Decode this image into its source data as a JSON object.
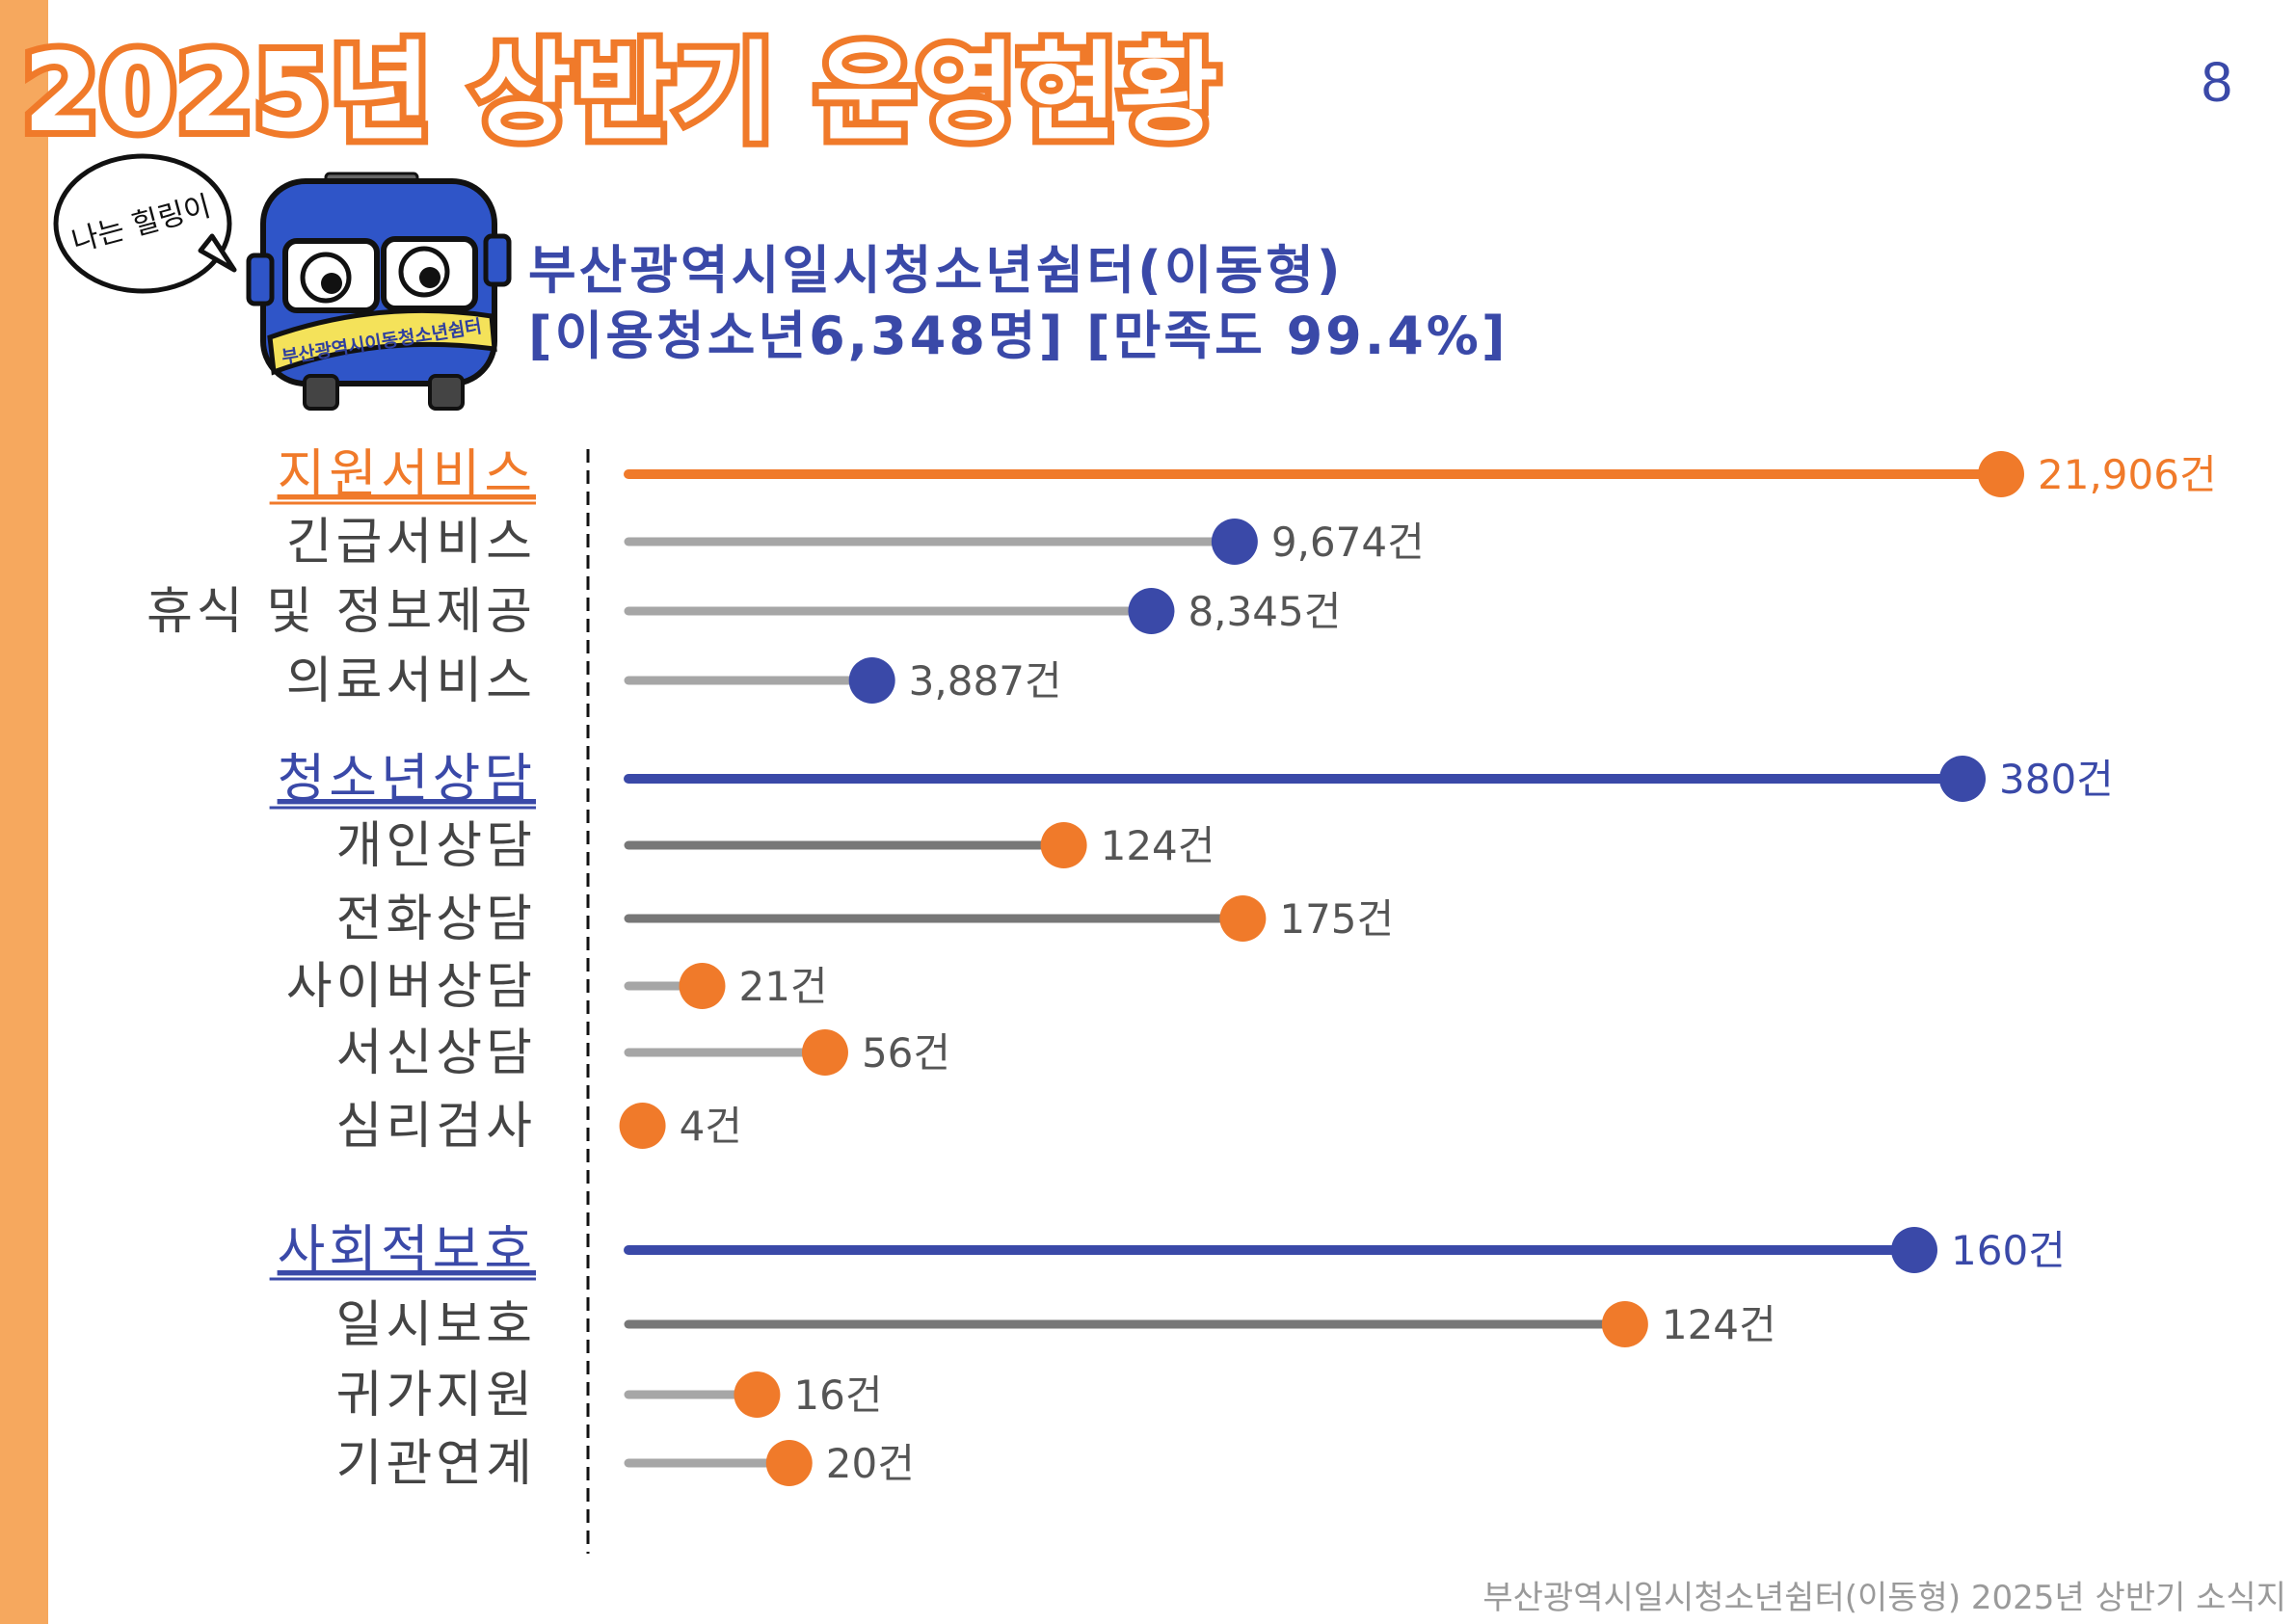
{
  "page": {
    "title": "2025년 상반기 운영현황",
    "page_number": "8",
    "heading_line1": "부산광역시일시청소년쉼터(이동형)",
    "heading_line2": "[이용청소년6,348명] [만족도 99.4%]",
    "mascot_speech": "나는 힐링이",
    "mascot_sign": "부산광역시이동청소년쉼터",
    "footer": "부산광역시일시청소년쉼터(이동형) 2025년 상반기 소식지"
  },
  "colors": {
    "accent_orange": "#f07a2a",
    "accent_blue": "#3a49a8",
    "light_gray": "#a6a6a6",
    "dark_gray": "#777777",
    "side_bar": "#f6a85e"
  },
  "chart_data": {
    "type": "lollipop",
    "unit": "건",
    "groups": [
      {
        "name": "지원서비스",
        "value": 21906,
        "value_label": "21,906건",
        "color": "orange",
        "items": [
          {
            "name": "긴급서비스",
            "value": 9674,
            "value_label": "9,674건"
          },
          {
            "name": "휴식 및 정보제공",
            "value": 8345,
            "value_label": "8,345건"
          },
          {
            "name": "의료서비스",
            "value": 3887,
            "value_label": "3,887건"
          }
        ]
      },
      {
        "name": "청소년상담",
        "value": 380,
        "value_label": "380건",
        "color": "blue",
        "items": [
          {
            "name": "개인상담",
            "value": 124,
            "value_label": "124건"
          },
          {
            "name": "전화상담",
            "value": 175,
            "value_label": "175건"
          },
          {
            "name": "사이버상담",
            "value": 21,
            "value_label": "21건"
          },
          {
            "name": "서신상담",
            "value": 56,
            "value_label": "56건"
          },
          {
            "name": "심리검사",
            "value": 4,
            "value_label": "4건"
          }
        ]
      },
      {
        "name": "사회적보호",
        "value": 160,
        "value_label": "160건",
        "color": "blue",
        "items": [
          {
            "name": "일시보호",
            "value": 124,
            "value_label": "124건"
          },
          {
            "name": "귀가지원",
            "value": 16,
            "value_label": "16건"
          },
          {
            "name": "기관연계",
            "value": 20,
            "value_label": "20건"
          }
        ]
      }
    ]
  }
}
